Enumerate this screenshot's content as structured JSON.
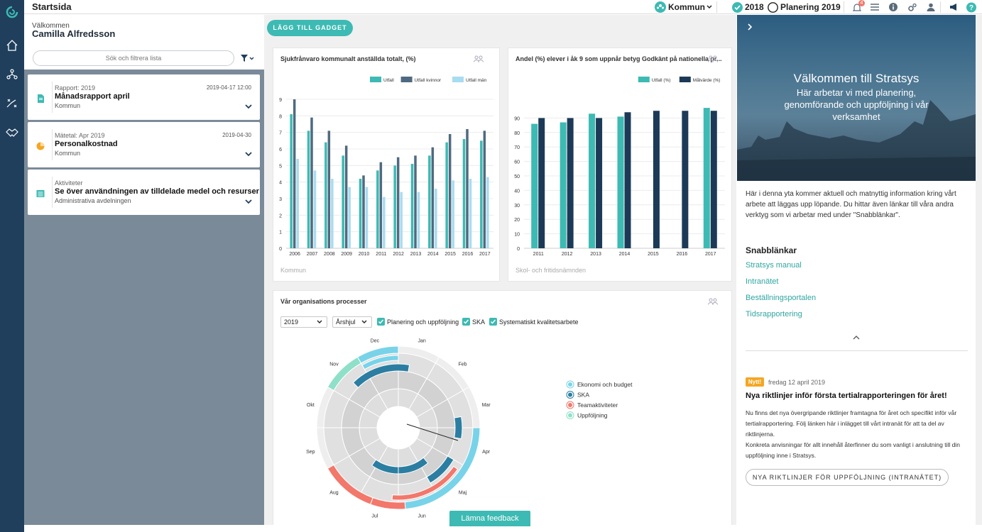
{
  "app": {
    "title": "Startsida"
  },
  "topbar": {
    "org": "Kommun",
    "year": "2018",
    "plan": "Planering 2019",
    "notif_count": "4"
  },
  "welcome": {
    "label": "Välkommen",
    "name": "Camilla Alfredsson"
  },
  "search": {
    "placeholder": "Sök och filtrera lista"
  },
  "list": [
    {
      "type": "Rapport: 2019",
      "date": "2019-04-17 12:00",
      "title": "Månadsrapport april",
      "sub": "Kommun",
      "color": "#3dbab3"
    },
    {
      "type": "Mätetal: Apr 2019",
      "date": "2019-04-30",
      "title": "Personalkostnad",
      "sub": "Kommun",
      "color": "#f5a623"
    },
    {
      "type": "Aktiviteter",
      "date": "",
      "title": "Se över användningen av tilldelade medel och resurser",
      "sub": "Administrativa avdelningen",
      "color": "#3dbab3"
    }
  ],
  "main": {
    "add_gadget": "LÄGG TILL GADGET",
    "feedback": "Lämna feedback"
  },
  "chart1": {
    "title": "Sjukfrånvaro kommunalt anställda totalt, (%)",
    "footer": "Kommun"
  },
  "chart2": {
    "title": "Andel (%) elever i åk 9 som uppnår betyg Godkänt på nationella pr...",
    "footer": "Skol- och fritidsnämnden"
  },
  "processes": {
    "title": "Vår organisations processer",
    "year": "2019",
    "view": "Årshjul",
    "checks": [
      "Planering och uppföljning",
      "SKA",
      "Systematiskt kvalitetsarbete"
    ],
    "months": [
      "Jan",
      "Feb",
      "Mar",
      "Apr",
      "Maj",
      "Jun",
      "Jul",
      "Aug",
      "Sep",
      "Okt",
      "Nov",
      "Dec"
    ],
    "legend": [
      "Ekonomi och budget",
      "SKA",
      "Teamaktiviteter",
      "Uppföljning"
    ],
    "legend_colors": [
      "#78d3e9",
      "#2b7ea1",
      "#f2786b",
      "#8fe0c8"
    ]
  },
  "right": {
    "hero_title": "Välkommen till Stratsys",
    "hero_sub": "Här arbetar vi med planering, genomförande och uppföljning i vår verksamhet",
    "intro": "Här i denna yta kommer aktuell och matnyttig information kring vårt arbete att läggas upp löpande. Du hittar även länkar till våra andra verktyg som vi arbetar med under \"Snabblänkar\".",
    "quicklinks_title": "Snabblänkar",
    "quicklinks": [
      "Stratsys manual",
      "Intranätet",
      "Beställningsportalen",
      "Tidsrapportering"
    ],
    "news_badge": "Nytt!",
    "news_date": "fredag 12 april 2019",
    "news_title": "Nya riktlinjer inför första tertialrapporteringen för året!",
    "news_p1": "Nu finns det nya övergripande riktlinjer framtagna för året och specifikt inför vår tertialrapportering. Följ länken här i inlägget till vårt intranät för att ta del av riktlinjerna.",
    "news_p2": "Konkreta anvisningar för allt innehåll återfinner du som vanligt i anslutning till din uppföljning inne i Stratsys.",
    "news_button": "NYA RIKTLINJER FÖR UPPFÖLJNING (INTRANÄTET)"
  },
  "chart_data": [
    {
      "type": "bar",
      "title": "Sjukfrånvaro kommunalt anställda totalt, (%)",
      "categories": [
        "2006",
        "2007",
        "2008",
        "2009",
        "2010",
        "2011",
        "2012",
        "2013",
        "2014",
        "2015",
        "2016",
        "2017"
      ],
      "series": [
        {
          "name": "Utfall",
          "color": "#3dbab3",
          "values": [
            8.1,
            7.1,
            6.4,
            5.6,
            4.2,
            4.7,
            5.0,
            5.1,
            5.6,
            6.4,
            6.6,
            6.5
          ]
        },
        {
          "name": "Utfall kvinnor",
          "color": "#4f6a80",
          "values": [
            9.0,
            7.9,
            7.1,
            6.2,
            4.4,
            5.2,
            5.5,
            5.6,
            6.1,
            6.9,
            7.2,
            7.1
          ]
        },
        {
          "name": "Utfall män",
          "color": "#a8dcf0",
          "values": [
            5.4,
            4.7,
            4.2,
            3.7,
            3.7,
            3.1,
            3.4,
            3.4,
            3.6,
            4.1,
            4.2,
            4.3
          ]
        }
      ],
      "ylim": [
        0,
        9
      ],
      "yticks": [
        0,
        1,
        2,
        3,
        4,
        5,
        6,
        7,
        8,
        9
      ],
      "legend": "top-right",
      "grid": true
    },
    {
      "type": "bar",
      "title": "Andel (%) elever i åk 9 som uppnår betyg Godkänt på nationella pr...",
      "categories": [
        "2011",
        "2012",
        "2013",
        "2014",
        "2015",
        "2016",
        "2017"
      ],
      "series": [
        {
          "name": "Utfall (%)",
          "color": "#3dbab3",
          "values": [
            86,
            87,
            93,
            91,
            null,
            null,
            97
          ]
        },
        {
          "name": "Målvärde (%)",
          "color": "#1c3a57",
          "values": [
            90,
            90,
            90,
            94,
            95,
            95,
            95
          ]
        }
      ],
      "ylim": [
        0,
        100
      ],
      "yticks": [
        0,
        10,
        20,
        30,
        40,
        50,
        60,
        70,
        80,
        90
      ],
      "legend": "top-right",
      "grid": true
    }
  ]
}
